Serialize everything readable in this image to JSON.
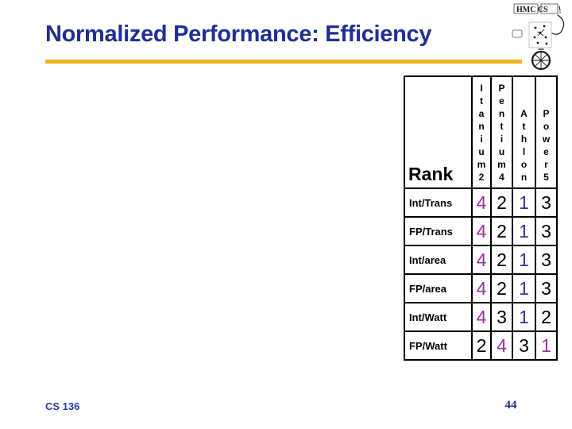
{
  "slide": {
    "title": "Normalized Performance: Efficiency",
    "footer": {
      "course": "CS 136",
      "page_number": "44"
    }
  },
  "logo": {
    "text": "HMC CS"
  },
  "colors": {
    "title_navy": "#212E92",
    "rule_gold": "#F0B216",
    "magenta": "#993399",
    "blue": "#333399",
    "black": "#000000",
    "footer_blue": "#2B3AA5"
  },
  "chart_data": {
    "type": "table",
    "corner_label": "Rank",
    "columns": [
      "Itanium 2",
      "Pentium 4",
      "Athlon",
      "Power 5"
    ],
    "rows": [
      {
        "label": "Int/Trans",
        "values": [
          4,
          2,
          1,
          3
        ],
        "colors": [
          "magenta",
          "black",
          "blue",
          "black"
        ]
      },
      {
        "label": "FP/Trans",
        "values": [
          4,
          2,
          1,
          3
        ],
        "colors": [
          "magenta",
          "black",
          "blue",
          "black"
        ]
      },
      {
        "label": "Int/area",
        "values": [
          4,
          2,
          1,
          3
        ],
        "colors": [
          "magenta",
          "black",
          "blue",
          "black"
        ]
      },
      {
        "label": "FP/area",
        "values": [
          4,
          2,
          1,
          3
        ],
        "colors": [
          "magenta",
          "black",
          "blue",
          "black"
        ]
      },
      {
        "label": "Int/Watt",
        "values": [
          4,
          3,
          1,
          2
        ],
        "colors": [
          "magenta",
          "black",
          "blue",
          "black"
        ]
      },
      {
        "label": "FP/Watt",
        "values": [
          2,
          4,
          3,
          1
        ],
        "colors": [
          "black",
          "magenta",
          "black",
          "magenta"
        ]
      }
    ]
  }
}
